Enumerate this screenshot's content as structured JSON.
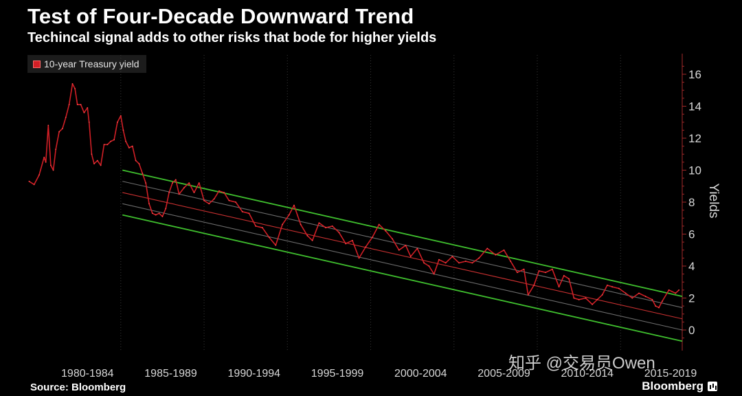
{
  "chart_data": {
    "type": "line",
    "title": "Test of Four-Decade Downward Trend",
    "subtitle": "Techincal signal adds to other risks that bode for higher yields",
    "ylabel": "Yields",
    "ylim": [
      -0.7,
      16.8
    ],
    "y_ticks": [
      0,
      2,
      4,
      6,
      8,
      10,
      12,
      14,
      16
    ],
    "x_range": [
      1978.9,
      2018.2
    ],
    "x_tick_labels": [
      "1980-1984",
      "1985-1989",
      "1990-1994",
      "1995-1999",
      "2000-2004",
      "2005-2009",
      "2010-2014",
      "2015-2019"
    ],
    "grid": "vertical dotted",
    "legend_placement": "top-left",
    "series": [
      {
        "name": "10-year Treasury yield",
        "color": "#d21f26",
        "x": [
          1979.0,
          1979.3,
          1979.6,
          1979.9,
          1980.0,
          1980.15,
          1980.3,
          1980.45,
          1980.6,
          1980.8,
          1981.0,
          1981.2,
          1981.4,
          1981.6,
          1981.75,
          1981.9,
          1982.1,
          1982.3,
          1982.5,
          1982.6,
          1982.75,
          1982.9,
          1983.1,
          1983.3,
          1983.5,
          1983.7,
          1983.9,
          1984.1,
          1984.3,
          1984.5,
          1984.65,
          1984.8,
          1985.0,
          1985.2,
          1985.4,
          1985.6,
          1985.8,
          1986.0,
          1986.2,
          1986.4,
          1986.6,
          1986.8,
          1987.0,
          1987.2,
          1987.4,
          1987.6,
          1987.8,
          1988.0,
          1988.3,
          1988.6,
          1988.9,
          1989.2,
          1989.5,
          1989.8,
          1990.1,
          1990.4,
          1990.7,
          1991.0,
          1991.4,
          1991.8,
          1992.2,
          1992.6,
          1993.0,
          1993.4,
          1993.8,
          1994.2,
          1994.6,
          1994.9,
          1995.3,
          1995.7,
          1996.0,
          1996.4,
          1996.8,
          1997.2,
          1997.6,
          1998.0,
          1998.4,
          1998.8,
          1999.2,
          1999.6,
          2000.0,
          2000.4,
          2000.8,
          2001.2,
          2001.6,
          2001.9,
          2002.3,
          2002.7,
          2003.0,
          2003.3,
          2003.6,
          2004.0,
          2004.4,
          2004.8,
          2005.2,
          2005.6,
          2006.0,
          2006.5,
          2007.0,
          2007.5,
          2007.9,
          2008.3,
          2008.7,
          2008.95,
          2009.3,
          2009.6,
          2010.0,
          2010.4,
          2010.8,
          2011.1,
          2011.4,
          2011.7,
          2012.0,
          2012.4,
          2012.8,
          2013.1,
          2013.4,
          2013.7,
          2014.0,
          2014.4,
          2014.8,
          2015.2,
          2015.6,
          2016.0,
          2016.4,
          2016.6,
          2016.8,
          2017.0,
          2017.4,
          2017.8,
          2018.0
        ],
        "values": [
          9.3,
          9.1,
          9.7,
          10.8,
          10.5,
          12.8,
          10.3,
          10.0,
          11.3,
          12.4,
          12.6,
          13.3,
          14.1,
          15.4,
          15.1,
          14.1,
          14.1,
          13.6,
          13.9,
          13.0,
          11.0,
          10.4,
          10.6,
          10.3,
          11.6,
          11.6,
          11.8,
          11.9,
          13.0,
          13.4,
          12.5,
          11.8,
          11.4,
          11.5,
          10.6,
          10.4,
          9.8,
          9.2,
          7.9,
          7.3,
          7.2,
          7.3,
          7.1,
          7.6,
          8.6,
          9.2,
          9.4,
          8.5,
          8.9,
          9.2,
          8.6,
          9.2,
          8.1,
          7.9,
          8.2,
          8.7,
          8.6,
          8.1,
          8.0,
          7.4,
          7.3,
          6.5,
          6.4,
          5.8,
          5.3,
          6.6,
          7.2,
          7.8,
          6.6,
          5.9,
          5.6,
          6.7,
          6.4,
          6.5,
          6.1,
          5.4,
          5.6,
          4.5,
          5.2,
          5.8,
          6.6,
          6.2,
          5.7,
          5.0,
          5.3,
          4.6,
          5.1,
          4.2,
          4.0,
          3.5,
          4.4,
          4.2,
          4.6,
          4.2,
          4.3,
          4.2,
          4.5,
          5.1,
          4.7,
          5.0,
          4.3,
          3.6,
          3.8,
          2.2,
          2.8,
          3.7,
          3.6,
          3.8,
          2.7,
          3.4,
          3.2,
          2.0,
          1.9,
          2.0,
          1.6,
          1.9,
          2.2,
          2.8,
          2.7,
          2.6,
          2.3,
          2.0,
          2.3,
          2.1,
          1.9,
          1.5,
          1.4,
          1.8,
          2.5,
          2.3,
          2.5
        ]
      }
    ],
    "channel_lines": [
      {
        "role": "upper-boundary",
        "color": "#3fbf2e",
        "x": [
          1984.6,
          2018.2
        ],
        "values": [
          10.0,
          2.1
        ]
      },
      {
        "role": "lower-boundary",
        "color": "#3fbf2e",
        "x": [
          1984.6,
          2018.2
        ],
        "values": [
          7.2,
          -0.7
        ]
      },
      {
        "role": "midline",
        "color": "#c83030",
        "x": [
          1984.6,
          2018.2
        ],
        "values": [
          8.6,
          0.7
        ]
      },
      {
        "role": "inner-upper",
        "color": "#9a9a9a",
        "x": [
          1984.6,
          2018.2
        ],
        "values": [
          9.3,
          1.4
        ]
      },
      {
        "role": "inner-lower",
        "color": "#9a9a9a",
        "x": [
          1984.6,
          2018.2
        ],
        "values": [
          7.9,
          0.0
        ]
      }
    ]
  },
  "source": "Source: Bloomberg",
  "brand": "Bloomberg",
  "watermark": "知乎 @交易员Owen"
}
